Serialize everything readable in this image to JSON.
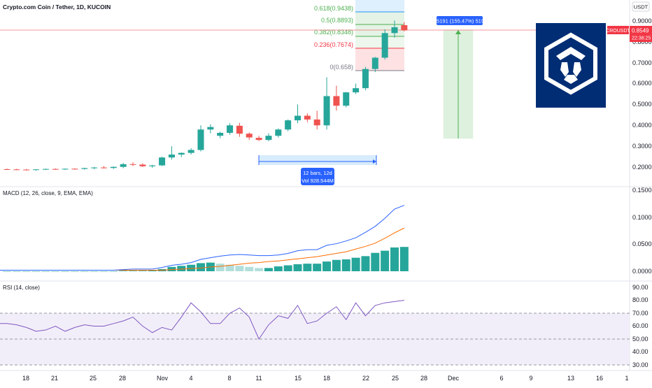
{
  "header": {
    "symbol_title": "Crypto.com Coin / Tether, 1D, KUCOIN"
  },
  "price_axis": {
    "unit_label": "USDT",
    "ticks": [
      "0.9000",
      "0.8000",
      "0.7000",
      "0.6000",
      "0.5000",
      "0.4000",
      "0.3000",
      "0.2000"
    ],
    "current_symbol": "CROUSDT",
    "current_price": "0.8549",
    "countdown": "22:38:25"
  },
  "time_axis": {
    "labels": [
      "18",
      "21",
      "25",
      "28",
      "Nov",
      "4",
      "8",
      "11",
      "15",
      "18",
      "22",
      "25",
      "28",
      "Dec",
      "6",
      "9",
      "13",
      "16",
      "1"
    ]
  },
  "fib": {
    "levels": [
      {
        "ratio": "0.618",
        "price": "0.9438",
        "label": "0.618(0.9438)"
      },
      {
        "ratio": "0.5",
        "price": "0.8893",
        "label": "0.5(0.8893)"
      },
      {
        "ratio": "0.382",
        "price": "0.8348",
        "label": "0.382(0.8348)"
      },
      {
        "ratio": "0.236",
        "price": "0.7674",
        "label": "0.236(0.7674)"
      },
      {
        "ratio": "0",
        "price": "0.658",
        "label": "0(0.658)"
      }
    ],
    "colors": {
      "0.618": "#2196f3",
      "0.5": "#4caf50",
      "0.382": "#4caf50",
      "0.236": "#f23645",
      "0": "#787b86"
    }
  },
  "range_tool": {
    "bars_label": "12 bars, 12d",
    "vol_label": "Vol 928.544M"
  },
  "long_position": {
    "label": "0.5191 (155.47%) 5191"
  },
  "macd": {
    "title": "MACD (12, 26, close, 9, EMA, EMA)",
    "ticks": [
      "0.1500",
      "0.1000",
      "0.0500",
      "0.0000"
    ],
    "colors": {
      "macd": "#2962ff",
      "signal": "#ff6d00",
      "hist_up": "#26a69a",
      "hist_down": "#b2dfdb"
    }
  },
  "rsi": {
    "title": "RSI (14, close)",
    "ticks": [
      "90.00",
      "80.00",
      "70.00",
      "60.00",
      "50.00",
      "40.00",
      "30.00"
    ],
    "upper_band": 70,
    "lower_band": 30,
    "colors": {
      "line": "#7e57c2",
      "band": "#ede7f6"
    }
  },
  "colors": {
    "up": "#26a69a",
    "down": "#ef5350",
    "price_line": "#f23645"
  },
  "logo": {
    "name": "crypto-com-logo",
    "bg": "#002d74"
  },
  "chart_data": {
    "type": "candlestick",
    "x_axis": "date",
    "candles": [
      {
        "o": 0.19,
        "h": 0.193,
        "l": 0.186,
        "c": 0.189
      },
      {
        "o": 0.189,
        "h": 0.192,
        "l": 0.185,
        "c": 0.188
      },
      {
        "o": 0.188,
        "h": 0.191,
        "l": 0.184,
        "c": 0.187
      },
      {
        "o": 0.187,
        "h": 0.19,
        "l": 0.183,
        "c": 0.189
      },
      {
        "o": 0.189,
        "h": 0.193,
        "l": 0.186,
        "c": 0.191
      },
      {
        "o": 0.191,
        "h": 0.194,
        "l": 0.187,
        "c": 0.19
      },
      {
        "o": 0.19,
        "h": 0.193,
        "l": 0.186,
        "c": 0.192
      },
      {
        "o": 0.192,
        "h": 0.195,
        "l": 0.188,
        "c": 0.191
      },
      {
        "o": 0.191,
        "h": 0.197,
        "l": 0.188,
        "c": 0.195
      },
      {
        "o": 0.195,
        "h": 0.201,
        "l": 0.19,
        "c": 0.198
      },
      {
        "o": 0.198,
        "h": 0.205,
        "l": 0.193,
        "c": 0.196
      },
      {
        "o": 0.196,
        "h": 0.203,
        "l": 0.191,
        "c": 0.201
      },
      {
        "o": 0.201,
        "h": 0.22,
        "l": 0.195,
        "c": 0.214
      },
      {
        "o": 0.214,
        "h": 0.223,
        "l": 0.205,
        "c": 0.212
      },
      {
        "o": 0.212,
        "h": 0.218,
        "l": 0.2,
        "c": 0.204
      },
      {
        "o": 0.204,
        "h": 0.211,
        "l": 0.197,
        "c": 0.208
      },
      {
        "o": 0.208,
        "h": 0.25,
        "l": 0.205,
        "c": 0.246
      },
      {
        "o": 0.246,
        "h": 0.3,
        "l": 0.236,
        "c": 0.26
      },
      {
        "o": 0.26,
        "h": 0.27,
        "l": 0.248,
        "c": 0.268
      },
      {
        "o": 0.268,
        "h": 0.29,
        "l": 0.26,
        "c": 0.282
      },
      {
        "o": 0.282,
        "h": 0.4,
        "l": 0.275,
        "c": 0.38
      },
      {
        "o": 0.38,
        "h": 0.405,
        "l": 0.362,
        "c": 0.392
      },
      {
        "o": 0.35,
        "h": 0.37,
        "l": 0.338,
        "c": 0.364
      },
      {
        "o": 0.364,
        "h": 0.41,
        "l": 0.355,
        "c": 0.4
      },
      {
        "o": 0.398,
        "h": 0.412,
        "l": 0.345,
        "c": 0.36
      },
      {
        "o": 0.36,
        "h": 0.366,
        "l": 0.33,
        "c": 0.342
      },
      {
        "o": 0.34,
        "h": 0.35,
        "l": 0.325,
        "c": 0.33
      },
      {
        "o": 0.33,
        "h": 0.362,
        "l": 0.324,
        "c": 0.35
      },
      {
        "o": 0.35,
        "h": 0.385,
        "l": 0.342,
        "c": 0.38
      },
      {
        "o": 0.38,
        "h": 0.428,
        "l": 0.372,
        "c": 0.424
      },
      {
        "o": 0.424,
        "h": 0.5,
        "l": 0.41,
        "c": 0.446
      },
      {
        "o": 0.446,
        "h": 0.458,
        "l": 0.415,
        "c": 0.428
      },
      {
        "o": 0.428,
        "h": 0.47,
        "l": 0.38,
        "c": 0.4
      },
      {
        "o": 0.4,
        "h": 0.63,
        "l": 0.38,
        "c": 0.54
      },
      {
        "o": 0.54,
        "h": 0.59,
        "l": 0.47,
        "c": 0.494
      },
      {
        "o": 0.494,
        "h": 0.56,
        "l": 0.486,
        "c": 0.558
      },
      {
        "o": 0.558,
        "h": 0.6,
        "l": 0.55,
        "c": 0.578
      },
      {
        "o": 0.578,
        "h": 0.68,
        "l": 0.568,
        "c": 0.67
      },
      {
        "o": 0.67,
        "h": 0.728,
        "l": 0.655,
        "c": 0.724
      },
      {
        "o": 0.724,
        "h": 0.86,
        "l": 0.715,
        "c": 0.842
      },
      {
        "o": 0.842,
        "h": 0.902,
        "l": 0.82,
        "c": 0.87
      },
      {
        "o": 0.88,
        "h": 0.895,
        "l": 0.85,
        "c": 0.855
      }
    ],
    "macd": [
      0.002,
      0.002,
      0.002,
      0.002,
      0.002,
      0.002,
      0.002,
      0.002,
      0.002,
      0.002,
      0.002,
      0.002,
      0.003,
      0.004,
      0.004,
      0.004,
      0.007,
      0.011,
      0.013,
      0.016,
      0.022,
      0.025,
      0.028,
      0.03,
      0.031,
      0.03,
      0.029,
      0.029,
      0.03,
      0.033,
      0.038,
      0.04,
      0.04,
      0.048,
      0.051,
      0.056,
      0.062,
      0.072,
      0.083,
      0.098,
      0.115,
      0.122
    ],
    "signal": [
      0.002,
      0.002,
      0.002,
      0.002,
      0.002,
      0.002,
      0.002,
      0.002,
      0.002,
      0.002,
      0.002,
      0.002,
      0.002,
      0.002,
      0.002,
      0.002,
      0.002,
      0.003,
      0.004,
      0.005,
      0.006,
      0.008,
      0.009,
      0.011,
      0.013,
      0.015,
      0.016,
      0.018,
      0.019,
      0.021,
      0.023,
      0.025,
      0.027,
      0.03,
      0.033,
      0.036,
      0.041,
      0.046,
      0.052,
      0.061,
      0.071,
      0.08
    ],
    "hist": [
      0,
      0,
      0,
      0,
      0,
      0,
      0,
      0,
      0,
      0,
      0,
      0,
      0.001,
      0.001,
      0.001,
      0.002,
      0.004,
      0.008,
      0.01,
      0.012,
      0.015,
      0.016,
      0.014,
      0.012,
      0.01,
      0.008,
      0.006,
      0.006,
      0.009,
      0.011,
      0.013,
      0.014,
      0.014,
      0.018,
      0.021,
      0.022,
      0.025,
      0.028,
      0.034,
      0.038,
      0.044,
      0.045
    ],
    "rsi": [
      62,
      61,
      59,
      56,
      57,
      60,
      56,
      59,
      61,
      60,
      60,
      62,
      64,
      67,
      60,
      55,
      59,
      57,
      67,
      78,
      71,
      62,
      62,
      70,
      74,
      67,
      50,
      61,
      68,
      66,
      76,
      62,
      64,
      70,
      75,
      65,
      78,
      68,
      76,
      78,
      79,
      80
    ]
  }
}
